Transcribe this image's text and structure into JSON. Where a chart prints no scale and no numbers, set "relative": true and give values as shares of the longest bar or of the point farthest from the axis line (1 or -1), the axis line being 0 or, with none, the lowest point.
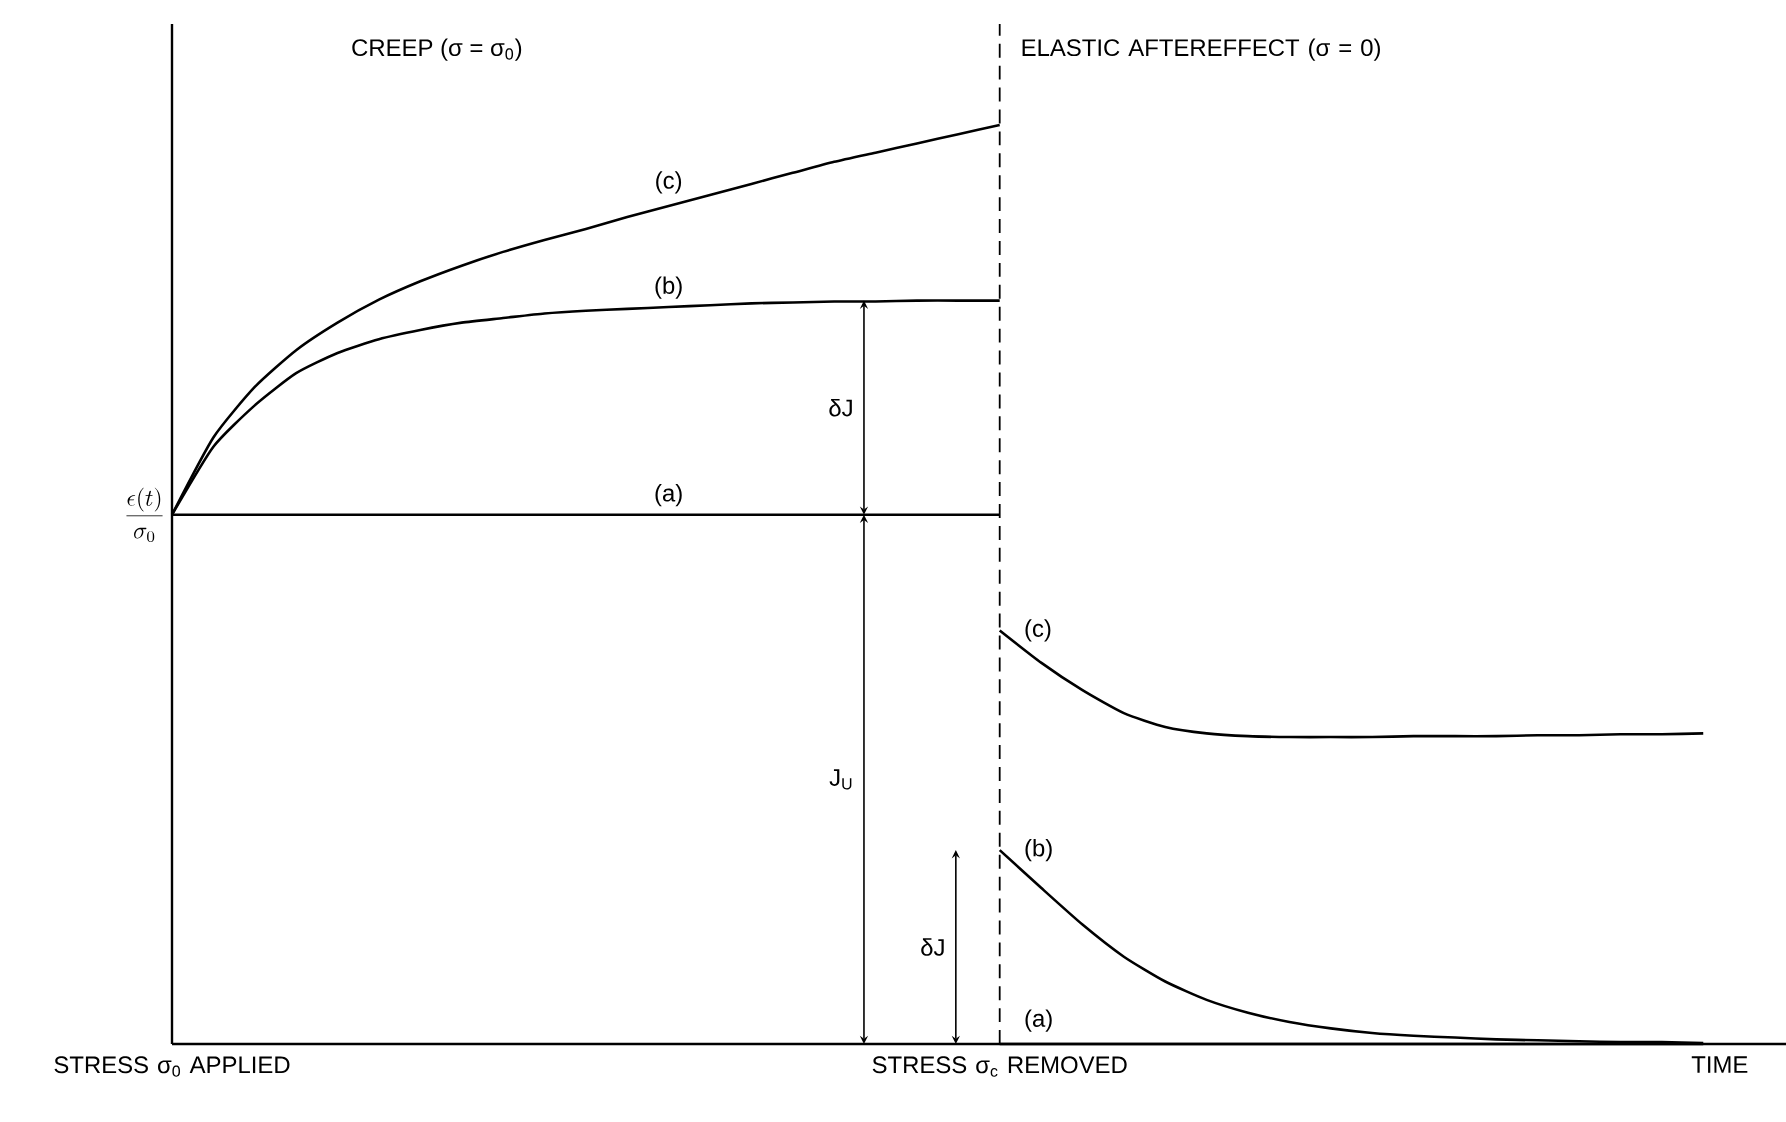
{
  "chart_data": {
    "type": "line",
    "relative": true,
    "ylabel": "\\frac{\\epsilon (t)}{\\sigma_0}",
    "categories": [
      null,
      null,
      null,
      null,
      null,
      null,
      null,
      null,
      null,
      null,
      null,
      null,
      null,
      null,
      null,
      null,
      null,
      null,
      null,
      null,
      null,
      null,
      null,
      null,
      null,
      null,
      null,
      null,
      null,
      null,
      null,
      null,
      null,
      null,
      null,
      null,
      null,
      null,
      null,
      null
    ],
    "series": [
      {
        "color": "#000000",
        "values": [
          0.576,
          0.576,
          0.576,
          0.576,
          0.576,
          0.576,
          0.576,
          0.576,
          0.576,
          0.576,
          0.576,
          0.576,
          0.576,
          0.576,
          0.576,
          0.576,
          0.576,
          0.576,
          0.576,
          0.576,
          0.576,
          null,
          null,
          null,
          null,
          null,
          null,
          null,
          null,
          null,
          null,
          null,
          null,
          null,
          null,
          null,
          null,
          null,
          null,
          null
        ]
      },
      {
        "color": "#000000",
        "values": [
          0.576,
          0.65,
          0.695,
          0.73,
          0.752,
          0.767,
          0.777,
          0.785,
          0.79,
          0.795,
          0.798,
          0.8,
          0.802,
          0.804,
          0.806,
          0.807,
          0.808,
          0.808,
          0.809,
          0.809,
          0.809,
          null,
          null,
          null,
          null,
          null,
          null,
          null,
          null,
          null,
          null,
          null,
          null,
          null,
          null,
          null,
          null,
          null,
          null,
          null
        ]
      },
      {
        "color": "#000000",
        "values": [
          0.576,
          0.66,
          0.715,
          0.755,
          0.785,
          0.81,
          0.83,
          0.847,
          0.862,
          0.875,
          0.887,
          0.9,
          0.912,
          0.924,
          0.936,
          0.948,
          0.96,
          0.97,
          0.98,
          0.99,
          1,
          null,
          null,
          null,
          null,
          null,
          null,
          null,
          null,
          null,
          null,
          null,
          null,
          null,
          null,
          null,
          null,
          null,
          null,
          null
        ]
      },
      {
        "color": "#000000",
        "values": [
          null,
          null,
          null,
          null,
          null,
          null,
          null,
          null,
          null,
          null,
          null,
          null,
          null,
          null,
          null,
          null,
          null,
          null,
          null,
          null,
          0,
          0,
          0,
          0,
          0,
          0,
          0,
          0,
          0,
          0,
          0,
          0,
          0,
          0,
          0,
          0,
          0,
          0,
          null,
          null
        ]
      },
      {
        "color": "#000000",
        "values": [
          null,
          null,
          null,
          null,
          null,
          null,
          null,
          null,
          null,
          null,
          null,
          null,
          null,
          null,
          null,
          null,
          null,
          null,
          null,
          null,
          0.211,
          0.17,
          0.13,
          0.095,
          0.068,
          0.048,
          0.034,
          0.024,
          0.017,
          0.012,
          0.009,
          0.007,
          0.005,
          0.004,
          0.003,
          0.002,
          0.002,
          0.001,
          null,
          null
        ]
      },
      {
        "color": "#000000",
        "values": [
          null,
          null,
          null,
          null,
          null,
          null,
          null,
          null,
          null,
          null,
          null,
          null,
          null,
          null,
          null,
          null,
          null,
          null,
          null,
          null,
          0.45,
          0.415,
          0.385,
          0.36,
          0.345,
          0.338,
          0.335,
          0.334,
          0.334,
          0.334,
          0.335,
          0.335,
          0.335,
          0.336,
          0.336,
          0.337,
          0.337,
          0.338,
          null,
          null
        ]
      }
    ],
    "annotations": [
      "CREEP (σ = σ$_{0}$)",
      "ELASTIC AFTEREFFECT (σ = 0)",
      "STRESS σ$_{0}$ APPLIED",
      "STRESS σ$_{c}$ REMOVED",
      "TIME",
      "(a)",
      "(b)",
      "(c)",
      "(c)",
      "(b)",
      "(a)",
      "δJ",
      "J$_{U}$",
      "δJ"
    ]
  }
}
